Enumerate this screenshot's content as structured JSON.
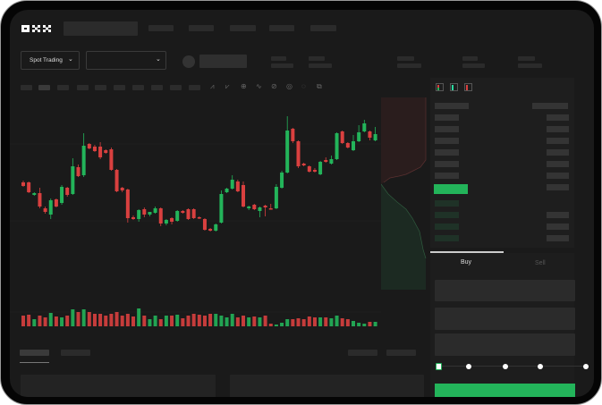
{
  "brand": {
    "logo_text": "OKX"
  },
  "market": {
    "mode_label": "Spot Trading",
    "pair_select_value": ""
  },
  "trade": {
    "tabs": [
      {
        "label": "Buy",
        "active": true
      },
      {
        "label": "Sell",
        "active": false
      }
    ],
    "slider_percent": 0,
    "colors": {
      "buy": "#23b45a",
      "sell": "#d9403f"
    }
  },
  "orderbook": {
    "icons": [
      "orderbook-both-icon",
      "orderbook-bids-icon",
      "orderbook-asks-icon"
    ]
  },
  "chart_data": {
    "type": "candlestick",
    "candles": [
      [
        97,
        99,
        92,
        93
      ],
      [
        97,
        98,
        85,
        86
      ],
      [
        83,
        86,
        82,
        85
      ],
      [
        85,
        91,
        68,
        70
      ],
      [
        68,
        70,
        62,
        64
      ],
      [
        61,
        79,
        56,
        77
      ],
      [
        78,
        79,
        69,
        70
      ],
      [
        74,
        94,
        72,
        92
      ],
      [
        91,
        92,
        81,
        83
      ],
      [
        84,
        124,
        83,
        115
      ],
      [
        114,
        117,
        103,
        104
      ],
      [
        105,
        152,
        103,
        138
      ],
      [
        140,
        141,
        134,
        135
      ],
      [
        137,
        139,
        131,
        132
      ],
      [
        137,
        142,
        123,
        125
      ],
      [
        133,
        134,
        129,
        130
      ],
      [
        134,
        136,
        110,
        111
      ],
      [
        111,
        112,
        86,
        87
      ],
      [
        91,
        92,
        86,
        88
      ],
      [
        89,
        90,
        52,
        57
      ],
      [
        58,
        60,
        55,
        56
      ],
      [
        56,
        67,
        53,
        66
      ],
      [
        67,
        69,
        58,
        61
      ],
      [
        61,
        64,
        59,
        64
      ],
      [
        63,
        70,
        62,
        68
      ],
      [
        68,
        69,
        48,
        51
      ],
      [
        51,
        56,
        49,
        55
      ],
      [
        57,
        58,
        50,
        53
      ],
      [
        54,
        66,
        53,
        65
      ],
      [
        65,
        66,
        62,
        63
      ],
      [
        67,
        68,
        55,
        56
      ],
      [
        67,
        68,
        56,
        57
      ],
      [
        58,
        59,
        56,
        57
      ],
      [
        56,
        57,
        43,
        44
      ],
      [
        45,
        46,
        42,
        43
      ],
      [
        43,
        51,
        42,
        50
      ],
      [
        52,
        88,
        51,
        84
      ],
      [
        86,
        91,
        85,
        90
      ],
      [
        90,
        105,
        89,
        100
      ],
      [
        98,
        100,
        86,
        87
      ],
      [
        94,
        98,
        69,
        70
      ],
      [
        68,
        71,
        66,
        70
      ],
      [
        72,
        73,
        66,
        67
      ],
      [
        65,
        70,
        58,
        69
      ],
      [
        71,
        72,
        59,
        69
      ],
      [
        68,
        73,
        67,
        67
      ],
      [
        68,
        95,
        67,
        92
      ],
      [
        91,
        110,
        90,
        108
      ],
      [
        108,
        171,
        107,
        155
      ],
      [
        157,
        158,
        141,
        143
      ],
      [
        143,
        144,
        113,
        115
      ],
      [
        118,
        119,
        115,
        116
      ],
      [
        115,
        116,
        108,
        109
      ],
      [
        111,
        113,
        108,
        109
      ],
      [
        106,
        121,
        105,
        120
      ],
      [
        122,
        125,
        119,
        120
      ],
      [
        118,
        127,
        117,
        123
      ],
      [
        123,
        153,
        122,
        152
      ],
      [
        154,
        155,
        140,
        141
      ],
      [
        141,
        142,
        135,
        136
      ],
      [
        133,
        150,
        132,
        143
      ],
      [
        143,
        161,
        142,
        153
      ],
      [
        154,
        167,
        153,
        163
      ],
      [
        154,
        155,
        144,
        147
      ],
      [
        144,
        159,
        143,
        151
      ]
    ],
    "volume": [
      12,
      13,
      8,
      12,
      10,
      15,
      11,
      10,
      12,
      19,
      16,
      19,
      16,
      14,
      14,
      12,
      14,
      16,
      12,
      14,
      11,
      20,
      12,
      8,
      12,
      8,
      12,
      12,
      13,
      9,
      12,
      14,
      13,
      12,
      14,
      14,
      12,
      10,
      14,
      10,
      12,
      10,
      11,
      10,
      12,
      3,
      2,
      4,
      8,
      8,
      9,
      8,
      11,
      10,
      10,
      10,
      9,
      12,
      9,
      8,
      6,
      4,
      3,
      5,
      5
    ]
  }
}
